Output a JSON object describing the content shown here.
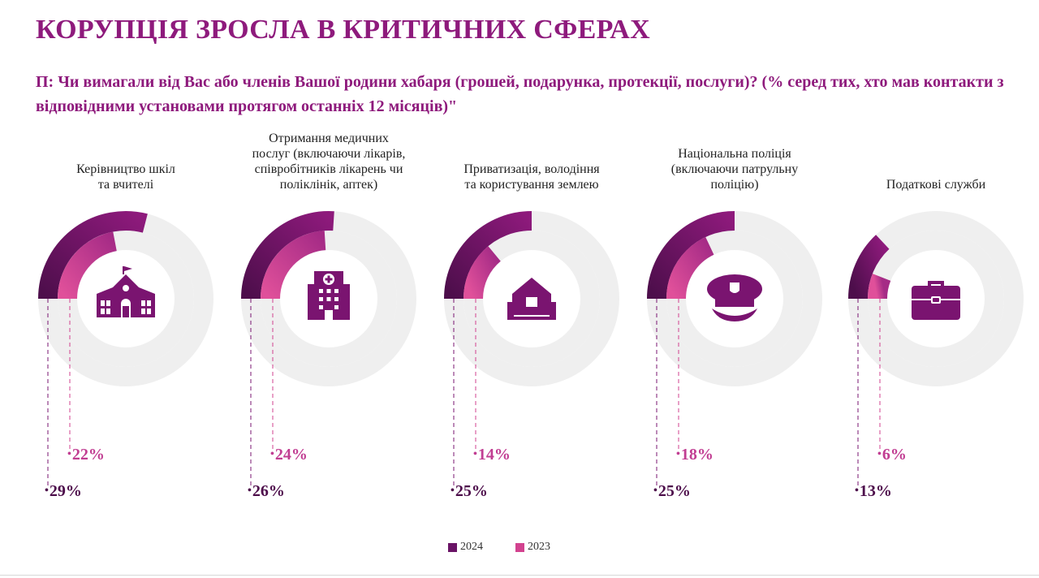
{
  "title": "КОРУПЦІЯ ЗРОСЛА В КРИТИЧНИХ СФЕРАХ",
  "question": "П: Чи вимагали від Вас або членів Вашої родини хабаря (грошей, подарунка, протекції, послуги)? (% серед тих, хто мав контакти з відповідними установами протягом останніх 12 місяців)\"",
  "colors": {
    "title": "#8e1a7c",
    "series_2024_dark": "#4d0e4b",
    "series_2024_light": "#8e1a7c",
    "series_2023_dark": "#a52b86",
    "series_2023_light": "#e0509a",
    "track": "#efefef",
    "icon": "#7a1470"
  },
  "chart_data": {
    "type": "radial-bar",
    "title": "КОРУПЦІЯ ЗРОСЛА В КРИТИЧНИХ СФЕРАХ",
    "unit": "%",
    "legend_placement": "bottom-center",
    "series": [
      {
        "name": "2024",
        "values": [
          29,
          26,
          25,
          25,
          13
        ]
      },
      {
        "name": "2023",
        "values": [
          22,
          24,
          14,
          18,
          6
        ]
      }
    ],
    "categories": [
      {
        "label_lines": [
          "Керівництво шкіл",
          "та вчителі"
        ],
        "icon": "school-icon",
        "value_2024": 29,
        "value_2023": 22,
        "label_2024": "29%",
        "label_2023": "22%"
      },
      {
        "label_lines": [
          "Отримання медичних",
          "послуг (включаючи лікарів,",
          "співробітників лікарень чи",
          "поліклінік, аптек)"
        ],
        "icon": "hospital-icon",
        "value_2024": 26,
        "value_2023": 24,
        "label_2024": "26%",
        "label_2023": "24%"
      },
      {
        "label_lines": [
          "Приватизація, володіння",
          "та користування землею"
        ],
        "icon": "land-house-icon",
        "value_2024": 25,
        "value_2023": 14,
        "label_2024": "25%",
        "label_2023": "14%"
      },
      {
        "label_lines": [
          "Національна поліція",
          "(включаючи патрульну",
          "поліцію)"
        ],
        "icon": "police-cap-icon",
        "value_2024": 25,
        "value_2023": 18,
        "label_2024": "25%",
        "label_2023": "18%"
      },
      {
        "label_lines": [
          "Податкові служби"
        ],
        "icon": "briefcase-icon",
        "value_2024": 13,
        "value_2023": 6,
        "label_2024": "13%",
        "label_2023": "6%"
      }
    ],
    "legend": [
      {
        "label": "2024",
        "color": "#6a1466"
      },
      {
        "label": "2023",
        "color": "#d2428f"
      }
    ]
  }
}
